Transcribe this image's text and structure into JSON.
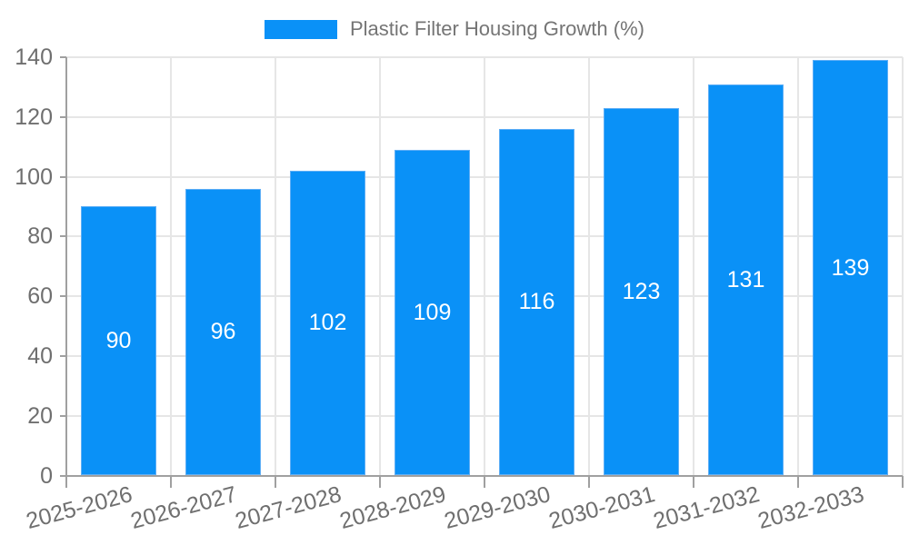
{
  "legend": {
    "label": "Plastic Filter Housing Growth (%)"
  },
  "chart_data": {
    "type": "bar",
    "title": "Plastic Filter Housing Growth (%)",
    "series_name": "Plastic Filter Housing Growth (%)",
    "categories": [
      "2025-2026",
      "2026-2027",
      "2027-2028",
      "2028-2029",
      "2029-2030",
      "2030-2031",
      "2031-2032",
      "2032-2033"
    ],
    "values": [
      90,
      96,
      102,
      109,
      116,
      123,
      131,
      139
    ],
    "bar_value_labels": [
      "90",
      "96",
      "102",
      "109",
      "116",
      "123",
      "131",
      "139"
    ],
    "xlabel": "",
    "ylabel": "",
    "ylim": [
      0,
      140
    ],
    "yticks": [
      0,
      20,
      40,
      60,
      80,
      100,
      120,
      140
    ],
    "grid": true,
    "legend_position": "top center",
    "value_label_position": "center of bar"
  },
  "colors": {
    "bar_fill": "#0a91f7",
    "bar_border": "#5eaef6",
    "grid_line": "#e6e6e6",
    "axis_line": "#a0a0a0",
    "tick_label": "#6f6f6f",
    "legend_text": "#757575",
    "bar_label": "#ffffff",
    "background": "#ffffff"
  }
}
